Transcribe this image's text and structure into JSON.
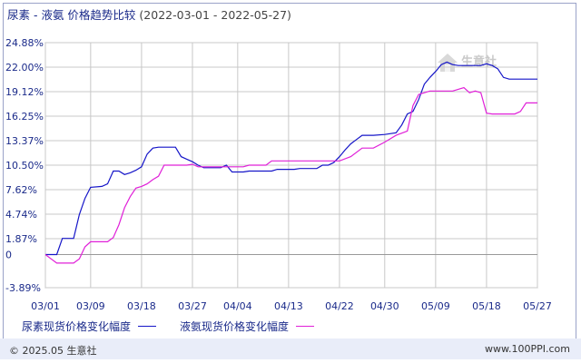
{
  "header": {
    "title": "尿素 - 液氨 价格趋势比较",
    "date_range": "(2022-03-01 - 2022-05-27)"
  },
  "watermark": {
    "text": "生意社",
    "sub": "100PPI.COM"
  },
  "footer": {
    "copyright": "© 2025.05 生意社",
    "url": "www.100PPI.com"
  },
  "colors": {
    "urea": "#1515c8",
    "ammonia": "#e020d8",
    "grid": "#c8c8c8"
  },
  "chart_data": {
    "type": "line",
    "title": "尿素 - 液氨 价格趋势比较",
    "xlabel": "",
    "ylabel": "",
    "ylim": [
      -3.89,
      24.88
    ],
    "y_ticks": [
      "24.88%",
      "22.00%",
      "19.12%",
      "16.25%",
      "13.37%",
      "10.50%",
      "7.62%",
      "4.74%",
      "1.87%",
      "0",
      "-3.89%"
    ],
    "y_tick_values": [
      24.88,
      22.0,
      19.12,
      16.25,
      13.37,
      10.5,
      7.62,
      4.74,
      1.87,
      0,
      -3.89
    ],
    "x_ticks": [
      "03/01",
      "03/09",
      "03/18",
      "03/27",
      "04/04",
      "04/13",
      "04/22",
      "04/30",
      "05/09",
      "05/18",
      "05/27"
    ],
    "x_tick_days": [
      0,
      8,
      17,
      26,
      34,
      43,
      52,
      60,
      69,
      78,
      87
    ],
    "x_range_days": [
      0,
      87
    ],
    "grid": true,
    "legend_position": "bottom",
    "series": [
      {
        "name": "尿素现货价格变化幅度",
        "color": "#1515c8",
        "points": [
          [
            0,
            0
          ],
          [
            2,
            0
          ],
          [
            3,
            1.9
          ],
          [
            5,
            1.9
          ],
          [
            6,
            4.7
          ],
          [
            7,
            6.6
          ],
          [
            8,
            7.9
          ],
          [
            10,
            8
          ],
          [
            11,
            8.3
          ],
          [
            12,
            9.8
          ],
          [
            13,
            9.8
          ],
          [
            14,
            9.4
          ],
          [
            15,
            9.6
          ],
          [
            16,
            9.9
          ],
          [
            17,
            10.3
          ],
          [
            18,
            11.8
          ],
          [
            19,
            12.5
          ],
          [
            20,
            12.6
          ],
          [
            22,
            12.6
          ],
          [
            23,
            12.6
          ],
          [
            24,
            11.5
          ],
          [
            25,
            11.2
          ],
          [
            26,
            10.9
          ],
          [
            27,
            10.5
          ],
          [
            28,
            10.2
          ],
          [
            30,
            10.2
          ],
          [
            31,
            10.2
          ],
          [
            32,
            10.5
          ],
          [
            33,
            9.7
          ],
          [
            35,
            9.7
          ],
          [
            36,
            9.8
          ],
          [
            40,
            9.8
          ],
          [
            41,
            10
          ],
          [
            44,
            10
          ],
          [
            45,
            10.1
          ],
          [
            48,
            10.1
          ],
          [
            49,
            10.5
          ],
          [
            50,
            10.5
          ],
          [
            51,
            10.8
          ],
          [
            52,
            11.5
          ],
          [
            53,
            12.3
          ],
          [
            54,
            13
          ],
          [
            55,
            13.5
          ],
          [
            56,
            14
          ],
          [
            58,
            14
          ],
          [
            60,
            14.1
          ],
          [
            62,
            14.3
          ],
          [
            63,
            15.2
          ],
          [
            64,
            16.5
          ],
          [
            65,
            16.8
          ],
          [
            66,
            18.2
          ],
          [
            67,
            20
          ],
          [
            68,
            20.8
          ],
          [
            69,
            21.5
          ],
          [
            70,
            22.3
          ],
          [
            71,
            22.6
          ],
          [
            72,
            22.3
          ],
          [
            73,
            22.2
          ],
          [
            74,
            22.2
          ],
          [
            77,
            22.2
          ],
          [
            78,
            22.4
          ],
          [
            79,
            22.2
          ],
          [
            80,
            21.8
          ],
          [
            81,
            20.8
          ],
          [
            82,
            20.6
          ],
          [
            84,
            20.6
          ],
          [
            87,
            20.6
          ]
        ]
      },
      {
        "name": "液氨现货价格变化幅度",
        "color": "#e020d8",
        "points": [
          [
            0,
            0
          ],
          [
            1,
            -0.5
          ],
          [
            2,
            -1
          ],
          [
            4,
            -1
          ],
          [
            5,
            -1
          ],
          [
            6,
            -0.5
          ],
          [
            7,
            0.9
          ],
          [
            8,
            1.5
          ],
          [
            11,
            1.5
          ],
          [
            12,
            2
          ],
          [
            13,
            3.5
          ],
          [
            14,
            5.5
          ],
          [
            15,
            6.8
          ],
          [
            16,
            7.8
          ],
          [
            17,
            8
          ],
          [
            18,
            8.3
          ],
          [
            19,
            8.8
          ],
          [
            20,
            9.2
          ],
          [
            21,
            10.5
          ],
          [
            25,
            10.5
          ],
          [
            26,
            10.6
          ],
          [
            27,
            10.3
          ],
          [
            35,
            10.3
          ],
          [
            36,
            10.5
          ],
          [
            39,
            10.5
          ],
          [
            40,
            11
          ],
          [
            52,
            11
          ],
          [
            54,
            11.5
          ],
          [
            56,
            12.5
          ],
          [
            58,
            12.5
          ],
          [
            60,
            13.2
          ],
          [
            62,
            14
          ],
          [
            64,
            14.5
          ],
          [
            65,
            17.5
          ],
          [
            66,
            18.8
          ],
          [
            67,
            19
          ],
          [
            68,
            19.2
          ],
          [
            72,
            19.2
          ],
          [
            73,
            19.4
          ],
          [
            74,
            19.6
          ],
          [
            75,
            19
          ],
          [
            76,
            19.2
          ],
          [
            77,
            19
          ],
          [
            78,
            16.6
          ],
          [
            79,
            16.5
          ],
          [
            83,
            16.5
          ],
          [
            84,
            16.8
          ],
          [
            85,
            17.8
          ],
          [
            87,
            17.8
          ]
        ]
      }
    ]
  }
}
